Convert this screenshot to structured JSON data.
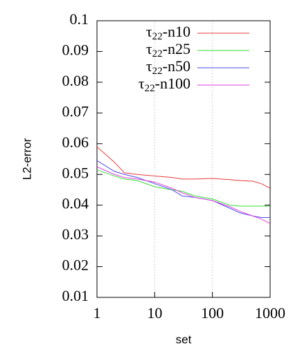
{
  "chart_data": {
    "type": "line",
    "x_label": "set",
    "y_label": "L2-error",
    "x": [
      1,
      2,
      3,
      5,
      10,
      20,
      30,
      50,
      100,
      200,
      300,
      500,
      700,
      1000
    ],
    "series": [
      {
        "name": "τ22-n10",
        "color": "#e8393a",
        "values": [
          0.059,
          0.054,
          0.0505,
          0.05,
          0.0495,
          0.049,
          0.0485,
          0.0485,
          0.0487,
          0.0483,
          0.048,
          0.0478,
          0.047,
          0.0455
        ]
      },
      {
        "name": "τ22-n25",
        "color": "#33dd33",
        "values": [
          0.0515,
          0.0495,
          0.0485,
          0.048,
          0.046,
          0.045,
          0.0445,
          0.043,
          0.042,
          0.04,
          0.0397,
          0.0397,
          0.0397,
          0.0397
        ]
      },
      {
        "name": "τ22-n50",
        "color": "#4a4ae8",
        "values": [
          0.0545,
          0.051,
          0.05,
          0.049,
          0.047,
          0.045,
          0.043,
          0.0425,
          0.0415,
          0.039,
          0.0375,
          0.0365,
          0.036,
          0.036
        ]
      },
      {
        "name": "τ22-n100",
        "color": "#e040e0",
        "values": [
          0.0525,
          0.05,
          0.049,
          0.0485,
          0.0475,
          0.0455,
          0.044,
          0.0425,
          0.0415,
          0.0395,
          0.038,
          0.0365,
          0.0355,
          0.034
        ]
      }
    ],
    "xlim": [
      1,
      1000
    ],
    "xticks": [
      1,
      10,
      100,
      1000
    ],
    "x_log": true,
    "ylim": [
      0.01,
      0.1
    ],
    "yticks": [
      0.01,
      0.02,
      0.03,
      0.04,
      0.05,
      0.06,
      0.07,
      0.08,
      0.09,
      0.1
    ],
    "grid": true,
    "legend": "top-right"
  }
}
